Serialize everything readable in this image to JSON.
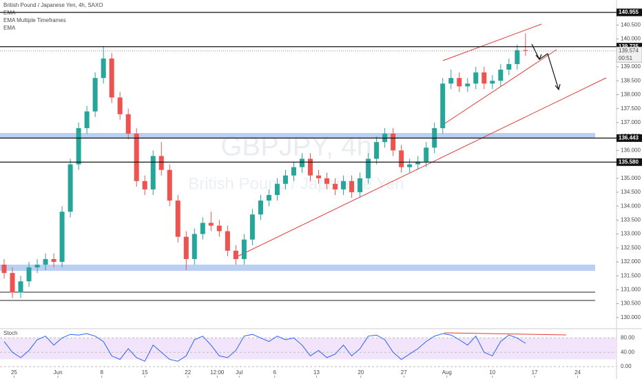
{
  "chart_data": {
    "type": "candlestick",
    "title": "British Pound / Japanese Yen, 4h, SAXO",
    "indicators": [
      "EMA",
      "EMA Multiple Timeframes",
      "EMA"
    ],
    "watermark": "GBPJPY, 4h",
    "watermark_subtitle": "British Pound / Japanese Yen",
    "up_color": "#26a69a",
    "down_color": "#ef5350",
    "open": [
      131.9,
      131.6,
      130.9,
      131.3,
      131.8,
      131.9,
      132.1,
      132.0,
      133.8,
      135.5,
      136.8,
      137.4,
      138.6,
      139.3,
      137.9,
      137.3,
      136.6,
      134.9,
      134.6,
      135.8,
      135.3,
      134.2,
      132.9,
      132.1,
      133.0,
      133.4,
      133.3,
      133.1,
      132.4,
      132.1,
      132.8,
      133.7,
      134.2,
      134.4,
      134.8,
      135.1,
      135.4,
      135.7,
      135.1,
      135.0,
      134.8,
      134.6,
      134.9,
      134.5,
      135.0,
      135.7,
      136.3,
      136.6,
      136.0,
      135.4,
      135.5,
      135.6,
      136.1,
      136.8,
      138.4,
      138.6,
      138.3,
      138.4,
      138.8,
      138.4,
      138.5,
      138.9,
      139.1,
      139.6
    ],
    "high": [
      132.1,
      131.8,
      131.5,
      132.0,
      132.1,
      132.3,
      132.3,
      134.0,
      135.7,
      137.0,
      137.6,
      138.8,
      139.75,
      139.5,
      138.1,
      137.5,
      136.8,
      135.1,
      136.0,
      136.3,
      135.5,
      134.4,
      133.1,
      133.2,
      133.6,
      133.8,
      133.5,
      133.3,
      132.6,
      133.0,
      133.9,
      134.4,
      134.6,
      135.0,
      135.3,
      135.6,
      135.9,
      135.9,
      135.3,
      135.2,
      135.0,
      135.1,
      135.1,
      135.2,
      135.9,
      136.5,
      136.8,
      136.8,
      136.2,
      135.7,
      135.8,
      136.3,
      137.0,
      138.6,
      138.9,
      138.8,
      138.6,
      139.0,
      139.0,
      138.7,
      139.1,
      139.3,
      139.8,
      140.2
    ],
    "low": [
      131.4,
      130.7,
      130.7,
      131.1,
      131.6,
      131.7,
      131.8,
      131.8,
      133.6,
      135.3,
      136.6,
      137.2,
      138.4,
      137.7,
      137.1,
      136.4,
      134.7,
      134.4,
      134.4,
      135.1,
      134.0,
      132.7,
      131.7,
      131.9,
      132.8,
      133.1,
      132.9,
      132.2,
      131.9,
      131.9,
      132.6,
      133.5,
      134.0,
      134.2,
      134.6,
      134.9,
      135.2,
      134.9,
      134.8,
      134.6,
      134.4,
      134.4,
      134.3,
      134.3,
      134.8,
      135.5,
      136.1,
      135.8,
      135.2,
      135.2,
      135.3,
      135.4,
      135.9,
      136.6,
      138.2,
      138.1,
      138.1,
      138.2,
      138.2,
      138.2,
      138.3,
      138.7,
      138.9,
      139.4
    ],
    "close": [
      131.6,
      130.9,
      131.3,
      131.8,
      131.9,
      132.1,
      132.0,
      133.8,
      135.5,
      136.8,
      137.4,
      138.6,
      139.3,
      137.9,
      137.3,
      136.6,
      134.9,
      134.6,
      135.8,
      135.3,
      134.2,
      132.9,
      132.1,
      133.0,
      133.4,
      133.3,
      133.1,
      132.4,
      132.1,
      132.8,
      133.7,
      134.2,
      134.4,
      134.8,
      135.1,
      135.4,
      135.7,
      135.1,
      135.0,
      134.8,
      134.6,
      134.9,
      134.5,
      135.0,
      135.7,
      136.3,
      136.6,
      136.0,
      135.4,
      135.5,
      135.6,
      136.1,
      136.8,
      138.4,
      138.6,
      138.3,
      138.4,
      138.8,
      138.4,
      138.5,
      138.9,
      139.1,
      139.6,
      139.57
    ],
    "xlim": [
      -0.5,
      74
    ],
    "xticks": [
      {
        "value": 1.2,
        "label": "25"
      },
      {
        "value": 6.5,
        "label": "Jun"
      },
      {
        "value": 11.8,
        "label": "8"
      },
      {
        "value": 17,
        "label": "15"
      },
      {
        "value": 22.2,
        "label": "22"
      },
      {
        "value": 25.75,
        "label": "12:00"
      },
      {
        "value": 28.4,
        "label": "Jul"
      },
      {
        "value": 32.7,
        "label": "6"
      },
      {
        "value": 37.75,
        "label": "13"
      },
      {
        "value": 43.1,
        "label": "20"
      },
      {
        "value": 48.3,
        "label": "27"
      },
      {
        "value": 53.5,
        "label": "Aug"
      },
      {
        "value": 59,
        "label": "10"
      },
      {
        "value": 64.1,
        "label": "17"
      },
      {
        "value": 69.3,
        "label": "24"
      }
    ],
    "ylim": [
      129.65,
      141.4
    ],
    "yticks": [
      {
        "value": 130,
        "label": "130.000"
      },
      {
        "value": 130.5,
        "label": "130.500"
      },
      {
        "value": 131,
        "label": "131.000"
      },
      {
        "value": 131.5,
        "label": "131.500"
      },
      {
        "value": 132,
        "label": "132.000"
      },
      {
        "value": 132.5,
        "label": "132.500"
      },
      {
        "value": 133,
        "label": "133.000"
      },
      {
        "value": 133.5,
        "label": "133.500"
      },
      {
        "value": 134,
        "label": "134.000"
      },
      {
        "value": 134.5,
        "label": "134.500"
      },
      {
        "value": 135,
        "label": "135.000"
      },
      {
        "value": 135.5,
        "label": "135.500"
      },
      {
        "value": 136,
        "label": "136.000"
      },
      {
        "value": 136.5,
        "label": "136.500"
      },
      {
        "value": 137,
        "label": "137.000"
      },
      {
        "value": 137.5,
        "label": "137.500"
      },
      {
        "value": 138,
        "label": "138.000"
      },
      {
        "value": 138.5,
        "label": "138.500"
      },
      {
        "value": 139,
        "label": "139.000"
      },
      {
        "value": 140,
        "label": "140.000"
      },
      {
        "value": 140.5,
        "label": "140.500"
      }
    ],
    "levels": [
      {
        "value": 140.955,
        "label": "140.955"
      },
      {
        "value": 139.725,
        "label": "139.725"
      },
      {
        "value": 136.443,
        "label": "136.443"
      },
      {
        "value": 135.58,
        "label": "135.580"
      }
    ],
    "current_price": {
      "value": 139.574,
      "label": "139.574"
    },
    "countdown": "00:51",
    "grid": false,
    "stoch": {
      "label": "Stoch",
      "color": "#2962ff",
      "values": [
        70,
        40,
        25,
        45,
        75,
        85,
        60,
        80,
        90,
        88,
        92,
        85,
        70,
        30,
        20,
        50,
        25,
        15,
        60,
        40,
        20,
        15,
        30,
        75,
        85,
        60,
        30,
        25,
        45,
        85,
        90,
        80,
        70,
        85,
        75,
        80,
        60,
        30,
        45,
        25,
        35,
        60,
        30,
        50,
        85,
        88,
        75,
        40,
        20,
        35,
        50,
        70,
        85,
        92,
        88,
        75,
        60,
        85,
        40,
        30,
        70,
        88,
        80,
        65
      ],
      "ylim": [
        -25,
        100
      ],
      "yticks": [
        {
          "value": 0,
          "label": "0.00"
        },
        {
          "value": 40,
          "label": "40.00"
        },
        {
          "value": 80,
          "label": "80.00"
        }
      ]
    }
  }
}
